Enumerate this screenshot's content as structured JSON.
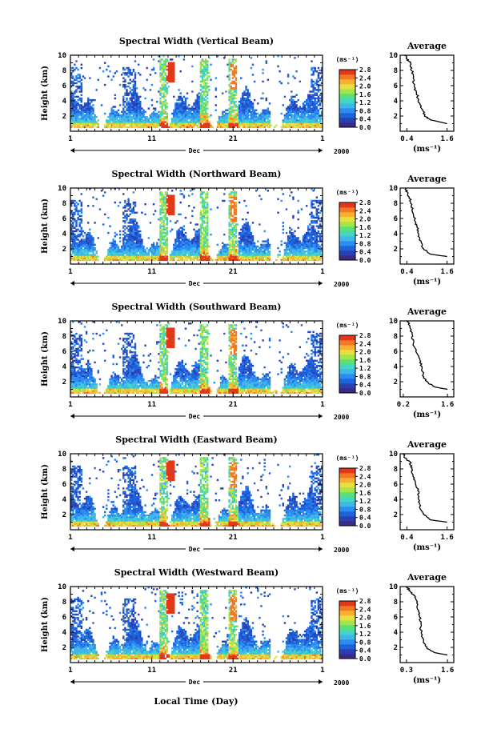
{
  "chart_data": {
    "type": "heatmap",
    "x_axis": {
      "label": "Local Time (Day)",
      "ticks": [
        "1",
        "11",
        "21",
        "1"
      ],
      "month_label": "Dec",
      "year_label": "2000",
      "range_days": [
        1,
        32
      ]
    },
    "y_axis": {
      "label": "Height (km)",
      "range": [
        0,
        10
      ],
      "ticks": [
        "2",
        "4",
        "6",
        "8",
        "10"
      ]
    },
    "colorbar": {
      "unit": "(ms⁻¹)",
      "range": [
        0,
        2.8
      ],
      "labels": [
        "0.0",
        "0.4",
        "0.8",
        "1.2",
        "1.6",
        "2.0",
        "2.4",
        "2.8"
      ],
      "colors": [
        "#3b2a86",
        "#2c3fb0",
        "#1d63dc",
        "#2b8cf2",
        "#3fb8e8",
        "#43d6c4",
        "#58e07c",
        "#a4e64a",
        "#e6e040",
        "#f8b030",
        "#f47822",
        "#e03818"
      ]
    },
    "panels": [
      {
        "title": "Spectral Width (Vertical Beam)",
        "average": {
          "title": "Average",
          "xlabel": "(ms⁻¹)",
          "xticks": [
            "0.4",
            "1.6"
          ],
          "xlim": [
            0.2,
            1.8
          ],
          "profile": [
            [
              0.35,
              10
            ],
            [
              0.4,
              9.5
            ],
            [
              0.5,
              9
            ],
            [
              0.55,
              8
            ],
            [
              0.6,
              7
            ],
            [
              0.6,
              6
            ],
            [
              0.7,
              5
            ],
            [
              0.75,
              4
            ],
            [
              0.85,
              3
            ],
            [
              0.95,
              2
            ],
            [
              1.1,
              1.5
            ],
            [
              1.6,
              1
            ]
          ]
        }
      },
      {
        "title": "Spectral Width (Northward Beam)",
        "average": {
          "title": "Average",
          "xlabel": "(ms⁻¹)",
          "xticks": [
            "0.4",
            "1.6"
          ],
          "xlim": [
            0.2,
            1.8
          ],
          "profile": [
            [
              0.35,
              10
            ],
            [
              0.4,
              9.5
            ],
            [
              0.5,
              8.5
            ],
            [
              0.55,
              7.5
            ],
            [
              0.6,
              6.5
            ],
            [
              0.65,
              5.5
            ],
            [
              0.7,
              5
            ],
            [
              0.75,
              4
            ],
            [
              0.8,
              3
            ],
            [
              0.9,
              2
            ],
            [
              1.1,
              1.3
            ],
            [
              1.6,
              1
            ]
          ]
        }
      },
      {
        "title": "Spectral Width (Southward Beam)",
        "average": {
          "title": "Average",
          "xlabel": "(ms⁻¹)",
          "xticks": [
            "0.2",
            "1.6"
          ],
          "xlim": [
            0.1,
            1.8
          ],
          "profile": [
            [
              0.3,
              10
            ],
            [
              0.4,
              9.5
            ],
            [
              0.45,
              8.5
            ],
            [
              0.5,
              7.5
            ],
            [
              0.55,
              6.5
            ],
            [
              0.65,
              5.5
            ],
            [
              0.75,
              4.5
            ],
            [
              0.8,
              3.5
            ],
            [
              0.85,
              2.5
            ],
            [
              1.0,
              1.8
            ],
            [
              1.2,
              1.3
            ],
            [
              1.6,
              1
            ]
          ]
        }
      },
      {
        "title": "Spectral Width (Eastward Beam)",
        "average": {
          "title": "Average",
          "xlabel": "(ms⁻¹)",
          "xticks": [
            "0.4",
            "1.6"
          ],
          "xlim": [
            0.2,
            1.8
          ],
          "profile": [
            [
              0.3,
              10
            ],
            [
              0.35,
              9.5
            ],
            [
              0.5,
              8.8
            ],
            [
              0.55,
              8
            ],
            [
              0.6,
              7
            ],
            [
              0.65,
              6
            ],
            [
              0.75,
              5
            ],
            [
              0.75,
              4
            ],
            [
              0.8,
              3
            ],
            [
              0.9,
              2
            ],
            [
              1.1,
              1.3
            ],
            [
              1.6,
              1
            ]
          ]
        }
      },
      {
        "title": "Spectral Width (Westward Beam)",
        "average": {
          "title": "Average",
          "xlabel": "(ms⁻¹)",
          "xticks": [
            "0.3",
            "1.6"
          ],
          "xlim": [
            0.1,
            1.8
          ],
          "profile": [
            [
              0.3,
              10
            ],
            [
              0.4,
              9.5
            ],
            [
              0.5,
              9
            ],
            [
              0.6,
              8.5
            ],
            [
              0.65,
              7.5
            ],
            [
              0.7,
              6.5
            ],
            [
              0.75,
              5.5
            ],
            [
              0.75,
              4.5
            ],
            [
              0.8,
              3.5
            ],
            [
              0.85,
              2.5
            ],
            [
              1.0,
              1.8
            ],
            [
              1.2,
              1.3
            ],
            [
              1.6,
              1
            ]
          ]
        }
      }
    ],
    "heatmap_features": {
      "low_layer_height_km": [
        0.5,
        3
      ],
      "high_value_columns_day": [
        12.5,
        17.5,
        21
      ],
      "high_value_cores": [
        {
          "day": 13.3,
          "height_km": [
            6.5,
            9.2
          ],
          "value": 2.7
        },
        {
          "day": 21.0,
          "height_km": [
            5.5,
            8.8
          ],
          "value": 2.3
        }
      ],
      "gaps_day": [
        [
          25.5,
          26.5
        ]
      ]
    }
  }
}
